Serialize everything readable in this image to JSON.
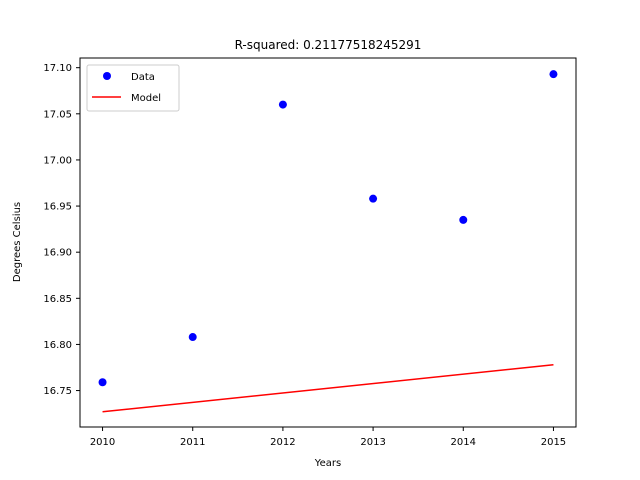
{
  "chart_data": {
    "type": "scatter",
    "title": "R-squared: 0.21177518245291",
    "xlabel": "Years",
    "ylabel": "Degrees Celsius",
    "xlim": [
      2009.75,
      2015.25
    ],
    "ylim": [
      16.7105,
      17.1105
    ],
    "x_ticks": [
      2010,
      2011,
      2012,
      2013,
      2014,
      2015
    ],
    "x_tick_labels": [
      "2010",
      "2011",
      "2012",
      "2013",
      "2014",
      "2015"
    ],
    "y_ticks": [
      16.75,
      16.8,
      16.85,
      16.9,
      16.95,
      17.0,
      17.05,
      17.1
    ],
    "y_tick_labels": [
      "16.75",
      "16.80",
      "16.85",
      "16.90",
      "16.95",
      "17.00",
      "17.05",
      "17.10"
    ],
    "grid": false,
    "legend": {
      "position": "top-left",
      "entries": [
        "Data",
        "Model"
      ]
    },
    "series": [
      {
        "name": "Data",
        "kind": "scatter",
        "color": "#0000ff",
        "x": [
          2010,
          2011,
          2012,
          2013,
          2014,
          2015
        ],
        "y": [
          16.759,
          16.808,
          17.06,
          16.958,
          16.935,
          17.093
        ]
      },
      {
        "name": "Model",
        "kind": "line",
        "color": "#ff0000",
        "x": [
          2010,
          2015
        ],
        "y": [
          16.727,
          16.778
        ]
      }
    ]
  }
}
